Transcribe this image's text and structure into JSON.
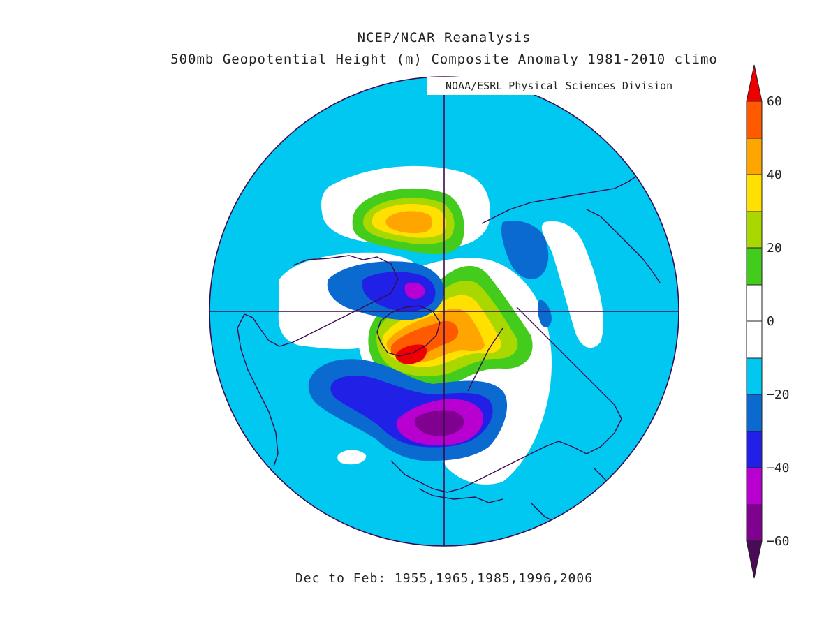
{
  "title": "NCEP/NCAR Reanalysis",
  "subtitle": "500mb Geopotential Height (m) Composite Anomaly 1981-2010 climo",
  "credit": "NOAA/ESRL Physical Sciences Division",
  "date_range": "Dec to Feb: 1955,1965,1985,1996,2006",
  "projection": "north polar stereographic",
  "colorbar": {
    "labels": [
      "60",
      "40",
      "20",
      "0",
      "−20",
      "−40",
      "−60"
    ],
    "levels": [
      {
        "range": ">60",
        "color": "#ee0000"
      },
      {
        "range": "50 to 60",
        "color": "#ff5a00"
      },
      {
        "range": "40 to 50",
        "color": "#ffa500"
      },
      {
        "range": "30 to 40",
        "color": "#ffe000"
      },
      {
        "range": "20 to 30",
        "color": "#a8d800"
      },
      {
        "range": "10 to 20",
        "color": "#44cc1c"
      },
      {
        "range": "0 to 10",
        "color": "#ffffff"
      },
      {
        "range": "-10 to 0",
        "color": "#ffffff"
      },
      {
        "range": "-20 to -10",
        "color": "#00c8f0"
      },
      {
        "range": "-30 to -20",
        "color": "#0a6ad0"
      },
      {
        "range": "-40 to -30",
        "color": "#2020e6"
      },
      {
        "range": "-50 to -40",
        "color": "#b800d0"
      },
      {
        "range": "-60 to -50",
        "color": "#800090"
      },
      {
        "range": "<-60",
        "color": "#4a0a58"
      }
    ]
  },
  "colors": {
    "background_anomaly": "#00c8f0",
    "coastline": "#3a0a50",
    "disk_outline": "#3a0a50"
  }
}
